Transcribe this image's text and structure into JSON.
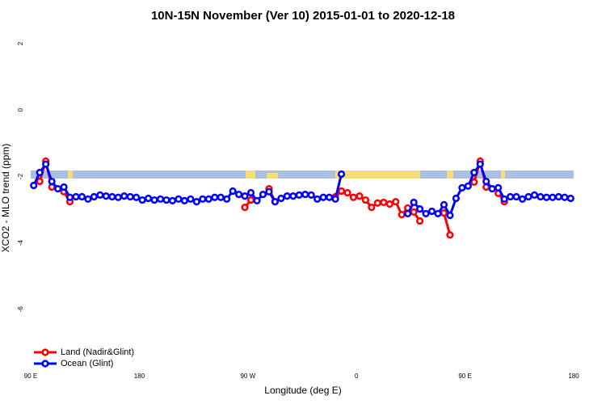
{
  "chart_data": {
    "type": "line",
    "title": "10N-15N November (Ver 10)   2015-01-01 to 2020-12-18",
    "x_label": "Longitude (deg E)",
    "y_label": "XCO2 - MLO trend (ppm)",
    "xlim": [
      90,
      540
    ],
    "xticks": [
      {
        "value": 90,
        "label": "90 E"
      },
      {
        "value": 180,
        "label": "180"
      },
      {
        "value": 270,
        "label": "90 W"
      },
      {
        "value": 360,
        "label": "0"
      },
      {
        "value": 450,
        "label": "90 E"
      },
      {
        "value": 540,
        "label": "180"
      }
    ],
    "ylim": [
      -7.83,
      2.34
    ],
    "yticks": [
      -6,
      -4,
      -2,
      0,
      2
    ],
    "legend": "bottomleft",
    "x": [
      92.5,
      97.5,
      102.5,
      107.5,
      112.5,
      117.5,
      122.5,
      127.5,
      132.5,
      137.5,
      142.5,
      147.5,
      152.5,
      157.5,
      162.5,
      167.5,
      172.5,
      177.5,
      182.5,
      187.5,
      192.5,
      197.5,
      202.5,
      207.5,
      212.5,
      217.5,
      222.5,
      227.5,
      232.5,
      237.5,
      242.5,
      247.5,
      252.5,
      257.5,
      262.5,
      267.5,
      272.5,
      277.5,
      282.5,
      287.5,
      292.5,
      297.5,
      302.5,
      307.5,
      312.5,
      317.5,
      322.5,
      327.5,
      332.5,
      337.5,
      342.5,
      347.5,
      352.5,
      357.5,
      362.5,
      367.5,
      372.5,
      377.5,
      382.5,
      387.5,
      392.5,
      397.5,
      402.5,
      407.5,
      412.5,
      417.5,
      422.5,
      427.5,
      432.5,
      437.5,
      442.5,
      447.5,
      452.5,
      457.5,
      462.5,
      467.5,
      472.5,
      477.5,
      482.5,
      487.5,
      492.5,
      497.5,
      502.5,
      507.5,
      512.5,
      517.5,
      522.5,
      527.5,
      532.5,
      537.5
    ],
    "series": [
      {
        "name": "Land (Nadir&Glint)",
        "color": "#ff0000",
        "values": [
          null,
          -2.15,
          -1.54,
          -2.32,
          null,
          -2.46,
          -2.76,
          null,
          null,
          null,
          null,
          null,
          null,
          null,
          null,
          null,
          null,
          null,
          null,
          null,
          null,
          null,
          null,
          null,
          null,
          null,
          null,
          null,
          null,
          null,
          null,
          null,
          null,
          null,
          null,
          -2.93,
          -2.71,
          null,
          null,
          -2.37,
          -2.76,
          null,
          null,
          null,
          null,
          null,
          null,
          null,
          null,
          null,
          -2.61,
          -2.44,
          -2.49,
          -2.63,
          -2.59,
          -2.71,
          -2.93,
          -2.8,
          -2.78,
          -2.83,
          -2.76,
          -3.15,
          -2.95,
          -3.07,
          -3.34,
          null,
          null,
          null,
          -3.1,
          -3.76,
          null,
          null,
          null,
          -2.17,
          -1.54,
          -2.32,
          null,
          -2.51,
          -2.76,
          null,
          null,
          null,
          null,
          null,
          null,
          null,
          null,
          null,
          null,
          null
        ]
      },
      {
        "name": "Ocean (Glint)",
        "color": "#0000ff",
        "values": [
          -2.27,
          -1.88,
          -1.63,
          -2.15,
          -2.37,
          -2.32,
          -2.63,
          -2.61,
          -2.61,
          -2.68,
          -2.61,
          -2.56,
          -2.59,
          -2.61,
          -2.63,
          -2.59,
          -2.61,
          -2.63,
          -2.71,
          -2.66,
          -2.71,
          -2.68,
          -2.71,
          -2.73,
          -2.68,
          -2.73,
          -2.68,
          -2.76,
          -2.68,
          -2.68,
          -2.63,
          -2.63,
          -2.68,
          -2.44,
          -2.54,
          -2.59,
          -2.49,
          -2.73,
          -2.54,
          -2.46,
          -2.76,
          -2.66,
          -2.59,
          -2.59,
          -2.56,
          -2.54,
          -2.56,
          -2.68,
          -2.63,
          -2.63,
          -2.68,
          -1.93,
          null,
          null,
          null,
          null,
          null,
          null,
          null,
          null,
          null,
          null,
          -3.12,
          -2.78,
          -2.98,
          -3.12,
          -3.05,
          -3.12,
          -2.85,
          -3.17,
          -2.66,
          -2.34,
          -2.29,
          -1.88,
          -1.63,
          -2.15,
          -2.37,
          -2.34,
          -2.68,
          -2.61,
          -2.61,
          -2.68,
          -2.61,
          -2.56,
          -2.61,
          -2.63,
          -2.63,
          -2.61,
          -2.63,
          -2.66
        ]
      }
    ]
  }
}
